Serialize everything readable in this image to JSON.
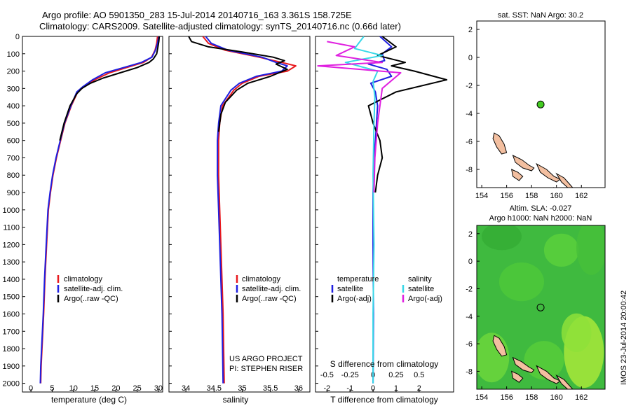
{
  "header": {
    "line1": "Argo profile: AO 5901350_283 15-Jul-2014 20140716_163 3.361S 158.725E",
    "line2": "Climatology: CARS2009. Satellite-adjusted climatology: synTS_20140716.nc (0.66d later)"
  },
  "colors": {
    "climatology": "#e8191e",
    "satellite": "#1f1fe0",
    "argo": "#000000",
    "sat_salinity": "#38d8e8",
    "argo_salinity": "#e020e0",
    "land": "#f3bfa0",
    "marker": "#44cc22"
  },
  "chart_data": [
    {
      "name": "temperature-panel",
      "type": "line",
      "xlabel": "temperature (deg C)",
      "ylabel": "",
      "xlim": [
        -2,
        31
      ],
      "ylim": [
        2050,
        0
      ],
      "xticks": [
        0,
        5,
        10,
        15,
        20,
        25,
        30
      ],
      "yticks": [
        0,
        100,
        200,
        300,
        400,
        500,
        600,
        700,
        800,
        900,
        1000,
        1100,
        1200,
        1300,
        1400,
        1500,
        1600,
        1700,
        1800,
        1900,
        2000
      ],
      "legend": [
        "climatology",
        "satellite-adj. clim.",
        "Argo(..raw -QC)"
      ],
      "legend_position": "bottom-center",
      "series": [
        {
          "name": "climatology",
          "x": [
            29.8,
            29.6,
            29.2,
            28.4,
            26.5,
            22.5,
            18.5,
            15.0,
            12.5,
            11.0,
            9.5,
            8.0,
            7.0,
            6.0,
            5.2,
            4.6,
            4.1,
            3.7,
            3.3,
            3.0,
            2.8,
            2.6,
            2.4,
            2.3
          ],
          "y": [
            0,
            40,
            80,
            120,
            150,
            180,
            210,
            250,
            290,
            320,
            400,
            500,
            600,
            700,
            800,
            900,
            1000,
            1200,
            1400,
            1600,
            1700,
            1800,
            1900,
            2000
          ]
        },
        {
          "name": "satellite-adj. clim.",
          "x": [
            30.1,
            29.8,
            29.3,
            28.5,
            26.0,
            21.8,
            17.5,
            14.5,
            12.2,
            10.8,
            9.4,
            7.9,
            6.9,
            5.9,
            5.1,
            4.5,
            4.0,
            3.6,
            3.2,
            2.9,
            2.7,
            2.5,
            2.3,
            2.2
          ],
          "y": [
            0,
            40,
            80,
            120,
            150,
            180,
            210,
            250,
            290,
            320,
            400,
            500,
            600,
            700,
            800,
            900,
            1000,
            1200,
            1400,
            1600,
            1700,
            1800,
            1900,
            2000
          ]
        },
        {
          "name": "Argo(..raw -QC)",
          "x": [
            30.2,
            30.1,
            29.9,
            29.6,
            28.8,
            27.8,
            25.0,
            21.0,
            17.0,
            14.0,
            12.0,
            10.8,
            9.2,
            7.8,
            6.8
          ],
          "y": [
            0,
            30,
            60,
            100,
            130,
            150,
            180,
            210,
            240,
            270,
            300,
            330,
            400,
            500,
            600
          ]
        }
      ]
    },
    {
      "name": "salinity-panel",
      "type": "line",
      "xlabel": "salinity",
      "xlim": [
        33.7,
        36.2
      ],
      "ylim": [
        2050,
        0
      ],
      "xticks": [
        34,
        34.5,
        35,
        35.5,
        36
      ],
      "legend": [
        "climatology",
        "satellite-adj. clim.",
        "Argo(..raw -QC)"
      ],
      "legend_position": "bottom-center",
      "annotation": [
        "US ARGO PROJECT",
        "PI: STEPHEN RISER"
      ],
      "series": [
        {
          "name": "climatology",
          "x": [
            34.3,
            34.4,
            34.7,
            35.3,
            35.7,
            35.95,
            35.8,
            35.3,
            35.0,
            34.85,
            34.65,
            34.6,
            34.58,
            34.58,
            34.6,
            34.62,
            34.64,
            34.66,
            34.67,
            34.68
          ],
          "y": [
            0,
            40,
            80,
            120,
            150,
            170,
            200,
            230,
            270,
            310,
            400,
            500,
            600,
            800,
            1000,
            1200,
            1400,
            1600,
            1800,
            2000
          ]
        },
        {
          "name": "satellite-adj. clim.",
          "x": [
            34.35,
            34.45,
            34.75,
            35.35,
            35.6,
            35.8,
            35.7,
            35.25,
            34.95,
            34.8,
            34.62,
            34.58,
            34.56,
            34.56,
            34.58,
            34.6,
            34.62,
            34.64,
            34.65,
            34.66
          ],
          "y": [
            0,
            40,
            80,
            120,
            150,
            170,
            200,
            230,
            270,
            310,
            400,
            500,
            600,
            800,
            1000,
            1200,
            1400,
            1600,
            1800,
            2000
          ]
        },
        {
          "name": "Argo(..raw -QC)",
          "x": [
            34.05,
            34.1,
            34.4,
            35.0,
            35.55,
            35.75,
            35.6,
            35.8,
            35.5,
            35.1,
            34.9,
            34.7,
            34.62,
            34.58
          ],
          "y": [
            0,
            30,
            60,
            90,
            120,
            140,
            160,
            190,
            230,
            270,
            310,
            380,
            450,
            550
          ]
        }
      ]
    },
    {
      "name": "difference-panel",
      "type": "line",
      "xlabel": "T difference from climatology",
      "x2label": "S difference from climatology",
      "xlim": [
        -2.5,
        3.5
      ],
      "x2lim": [
        -0.625,
        0.875
      ],
      "ylim": [
        2050,
        0
      ],
      "xticks": [
        -2,
        -1,
        0,
        1,
        2
      ],
      "x2ticks": [
        -0.5,
        -0.25,
        0,
        0.25,
        0.5
      ],
      "legend_title_temperature": "temperature",
      "legend_title_salinity": "salinity",
      "legend": [
        "satellite",
        "Argo(-adj)",
        "satellite",
        "Argo(-adj)"
      ],
      "legend_position": "bottom-center",
      "series": [
        {
          "name": "temperature satellite",
          "x": [
            0.3,
            0.8,
            0.4,
            0.5,
            -0.2,
            0.6,
            0.8,
            -0.1,
            0.1,
            0.2,
            0.15,
            0.1,
            0.05,
            0.0,
            0.0,
            0.02,
            0.0
          ],
          "y": [
            0,
            60,
            100,
            140,
            160,
            190,
            230,
            270,
            320,
            400,
            500,
            600,
            700,
            900,
            1200,
            1600,
            2000
          ]
        },
        {
          "name": "temperature Argo(-adj)",
          "x": [
            0.4,
            1.0,
            0.2,
            1.4,
            0.8,
            1.8,
            3.2,
            1.0,
            -0.2,
            0.0,
            0.3,
            0.4,
            0.2,
            0.1
          ],
          "y": [
            0,
            60,
            110,
            150,
            170,
            200,
            250,
            320,
            400,
            500,
            600,
            700,
            800,
            900
          ]
        },
        {
          "name": "salinity satellite",
          "x": [
            -0.1,
            -0.2,
            0.1,
            -0.3,
            0.05,
            0.0,
            0.02,
            0.01,
            0.0,
            0.01,
            0.0,
            0.0
          ],
          "y": [
            0,
            70,
            110,
            150,
            200,
            260,
            350,
            500,
            800,
            1200,
            1600,
            2000
          ]
        },
        {
          "name": "salinity Argo(-adj)",
          "x": [
            -0.5,
            -0.2,
            -0.4,
            0.1,
            -0.6,
            0.3,
            0.1,
            0.05,
            0.02,
            0.01
          ],
          "y": [
            30,
            60,
            110,
            150,
            170,
            210,
            300,
            500,
            700,
            900
          ]
        }
      ]
    },
    {
      "name": "sst-map",
      "type": "map",
      "title": "sat. SST: NaN Argo: 30.2",
      "xlim": [
        153.6,
        163.9
      ],
      "ylim": [
        -9.3,
        2.6
      ],
      "xticks": [
        154,
        156,
        158,
        160,
        162
      ],
      "yticks": [
        2,
        0,
        -2,
        -4,
        -6,
        -8
      ],
      "profile_location": [
        158.725,
        -3.361
      ]
    },
    {
      "name": "sla-map",
      "type": "heatmap",
      "title_line1": "Altim. SLA: -0.027",
      "title_line2": "Argo h1000: NaN h2000: NaN",
      "xlim": [
        153.6,
        163.9
      ],
      "ylim": [
        -9.3,
        2.6
      ],
      "xticks": [
        154,
        156,
        158,
        160,
        162
      ],
      "yticks": [
        2,
        0,
        -2,
        -4,
        -6,
        -8
      ],
      "profile_location": [
        158.725,
        -3.361
      ]
    }
  ],
  "footer": {
    "stamp": "IMOS 23-Jul-2014 20:00:42"
  }
}
